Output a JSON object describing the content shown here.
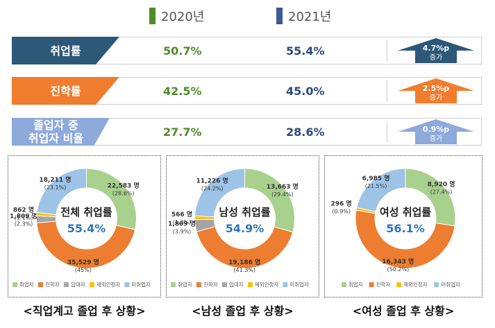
{
  "legend": [
    {
      "label": "2020년",
      "color": "#4e8c2a"
    },
    {
      "label": "2021년",
      "color": "#3a5a9a"
    }
  ],
  "rows": [
    {
      "label": "취업률",
      "v2020": "50.7%",
      "v2021": "55.4%",
      "change": "4.7%p",
      "change_word": "증가",
      "color": "#2e5878",
      "arrow_color": "#2e5878"
    },
    {
      "label": "진학률",
      "v2020": "42.5%",
      "v2021": "45.0%",
      "change": "2.5%p",
      "change_word": "증가",
      "color": "#ef7d2d",
      "arrow_color": "#ef7d2d"
    },
    {
      "label": "졸업자 중 취업자 비율",
      "v2020": "27.7%",
      "v2021": "28.6%",
      "change": "0.9%p",
      "change_word": "증가",
      "color": "#8eaadb",
      "arrow_color": "#8eaadb"
    }
  ],
  "chart_data": [
    {
      "type": "pie",
      "center_title": "전체 취업률",
      "center_value": "55.4%",
      "caption": "<직업계고 졸업 후 상황>",
      "categories": [
        "취업자",
        "진학자",
        "입대자",
        "제외인정자",
        "미취업자"
      ],
      "series": [
        {
          "values": [
            22583,
            35529,
            1809,
            862,
            18211
          ]
        }
      ],
      "labels": [
        {
          "count": "22,583 명",
          "pct": "(28.6%)"
        },
        {
          "count": "35,529 명",
          "pct": "(45%)"
        },
        {
          "count": "1,809 명",
          "pct": "(2.3%)"
        },
        {
          "count": "862 명",
          "pct": "(1.1%)"
        },
        {
          "count": "18,211 명",
          "pct": "(23.1%)"
        }
      ]
    },
    {
      "type": "pie",
      "center_title": "남성 취업률",
      "center_value": "54.9%",
      "caption": "<남성 졸업 후 상황>",
      "categories": [
        "취업자",
        "진학자",
        "입대자",
        "제외인정자",
        "미취업자"
      ],
      "series": [
        {
          "values": [
            13663,
            19186,
            1809,
            566,
            11226
          ]
        }
      ],
      "labels": [
        {
          "count": "13,663 명",
          "pct": "(29.4%)"
        },
        {
          "count": "19,186 명",
          "pct": "(41.3%)"
        },
        {
          "count": "1,809 명",
          "pct": "(3.9%)"
        },
        {
          "count": "566 명",
          "pct": "(1.2%)"
        },
        {
          "count": "11,226 명",
          "pct": "(24.2%)"
        }
      ]
    },
    {
      "type": "pie",
      "center_title": "여성 취업률",
      "center_value": "56.1%",
      "caption": "<여성 졸업 후 상황>",
      "categories": [
        "취업자",
        "진학자",
        "제외인정자",
        "미취업자"
      ],
      "series": [
        {
          "values": [
            8920,
            16343,
            296,
            6985
          ]
        }
      ],
      "labels": [
        {
          "count": "8,920 명",
          "pct": "(27.4%)"
        },
        {
          "count": "16,343 명",
          "pct": "(50.2%)"
        },
        {
          "count": "296 명",
          "pct": "(0.9%)"
        },
        {
          "count": "6,985 명",
          "pct": "(21.5%)"
        }
      ]
    }
  ],
  "colors": {
    "취업자": "#a9d18e",
    "진학자": "#ed7d31",
    "입대자": "#a5a5a5",
    "제외인정자": "#ffc000",
    "미취업자": "#9dc3e6",
    "center_value": "#2e75b6"
  }
}
